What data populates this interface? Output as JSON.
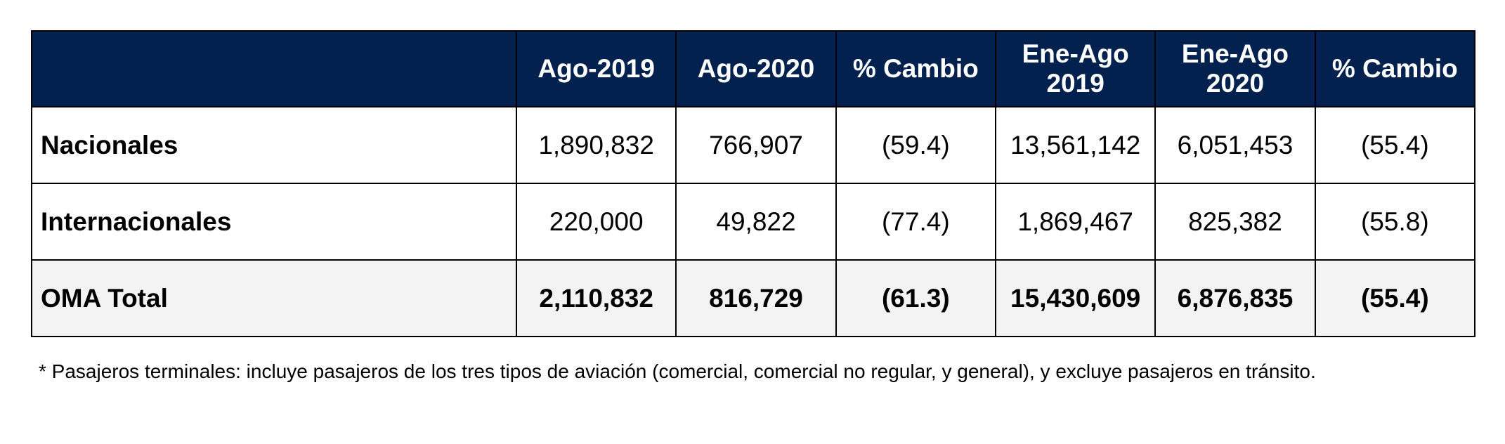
{
  "table": {
    "headers": [
      {
        "key": "label",
        "text": ""
      },
      {
        "key": "ago_2019",
        "text": "Ago-2019"
      },
      {
        "key": "ago_2020",
        "text": "Ago-2020"
      },
      {
        "key": "cambio_ago",
        "text": "% Cambio"
      },
      {
        "key": "ene_ago_2019",
        "text": "Ene-Ago 2019"
      },
      {
        "key": "ene_ago_2020",
        "text": "Ene-Ago 2020"
      },
      {
        "key": "cambio_ene_ago",
        "text": "% Cambio"
      }
    ],
    "rows": [
      {
        "label": "Nacionales",
        "values": [
          "1,890,832",
          "766,907",
          "(59.4)",
          "13,561,142",
          "6,051,453",
          "(55.4)"
        ]
      },
      {
        "label": "Internacionales",
        "values": [
          "220,000",
          "49,822",
          "(77.4)",
          "1,869,467",
          "825,382",
          "(55.8)"
        ]
      },
      {
        "label": "OMA Total",
        "values": [
          "2,110,832",
          "816,729",
          "(61.3)",
          "15,430,609",
          "6,876,835",
          "(55.4)"
        ]
      }
    ]
  },
  "footnote": "* Pasajeros terminales: incluye pasajeros de los tres tipos de aviación (comercial, comercial no regular, y general), y excluye pasajeros en tránsito.",
  "colors": {
    "header_background": "#03214f",
    "header_text": "#ffffff",
    "total_row_background": "#f2f3f2",
    "border": "#000000"
  }
}
